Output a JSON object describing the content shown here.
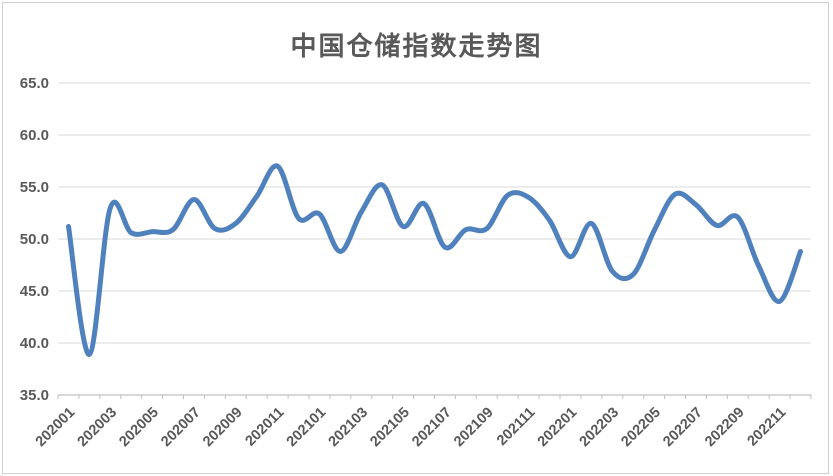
{
  "window": {
    "background": "#ffffff",
    "border_color": "#d0d0d0"
  },
  "chart_data": {
    "type": "line",
    "title": "中国仓储指数走势图",
    "title_color": "#595959",
    "x": [
      "202001",
      "202002",
      "202003",
      "202004",
      "202005",
      "202006",
      "202007",
      "202008",
      "202009",
      "202010",
      "202011",
      "202012",
      "202101",
      "202102",
      "202103",
      "202104",
      "202105",
      "202106",
      "202107",
      "202108",
      "202109",
      "202110",
      "202111",
      "202112",
      "202201",
      "202202",
      "202203",
      "202204",
      "202205",
      "202206",
      "202207",
      "202208",
      "202209",
      "202210",
      "202211",
      "202212"
    ],
    "series": [
      {
        "name": "中国仓储指数",
        "color": "#4F81BD",
        "values": [
          51.2,
          38.9,
          53.0,
          50.6,
          50.7,
          50.9,
          53.8,
          51.0,
          51.5,
          54.1,
          57.0,
          52.0,
          52.4,
          48.8,
          52.6,
          55.2,
          51.2,
          53.4,
          49.2,
          50.9,
          51.0,
          54.2,
          54.0,
          51.8,
          48.3,
          51.5,
          46.9,
          46.6,
          50.8,
          54.3,
          53.3,
          51.3,
          52.1,
          47.4,
          44.0,
          48.8
        ]
      }
    ],
    "ylim": [
      35,
      65
    ],
    "ytick_step": 5,
    "ytick_labels": [
      "35.0",
      "40.0",
      "45.0",
      "50.0",
      "55.0",
      "60.0",
      "65.0"
    ],
    "xtick_every": 2,
    "xtick_labels": [
      "202001",
      "202003",
      "202005",
      "202007",
      "202009",
      "202011",
      "202101",
      "202103",
      "202105",
      "202107",
      "202109",
      "202111",
      "202201",
      "202203",
      "202205",
      "202207",
      "202209",
      "202211"
    ],
    "grid": "horizontal",
    "legend": "none",
    "smooth": true,
    "line_width": 5,
    "grid_color": "#d9d9d9",
    "axis_color": "#bfbfbf",
    "tick_label_color": "#595959",
    "xlabel": "",
    "ylabel": ""
  }
}
